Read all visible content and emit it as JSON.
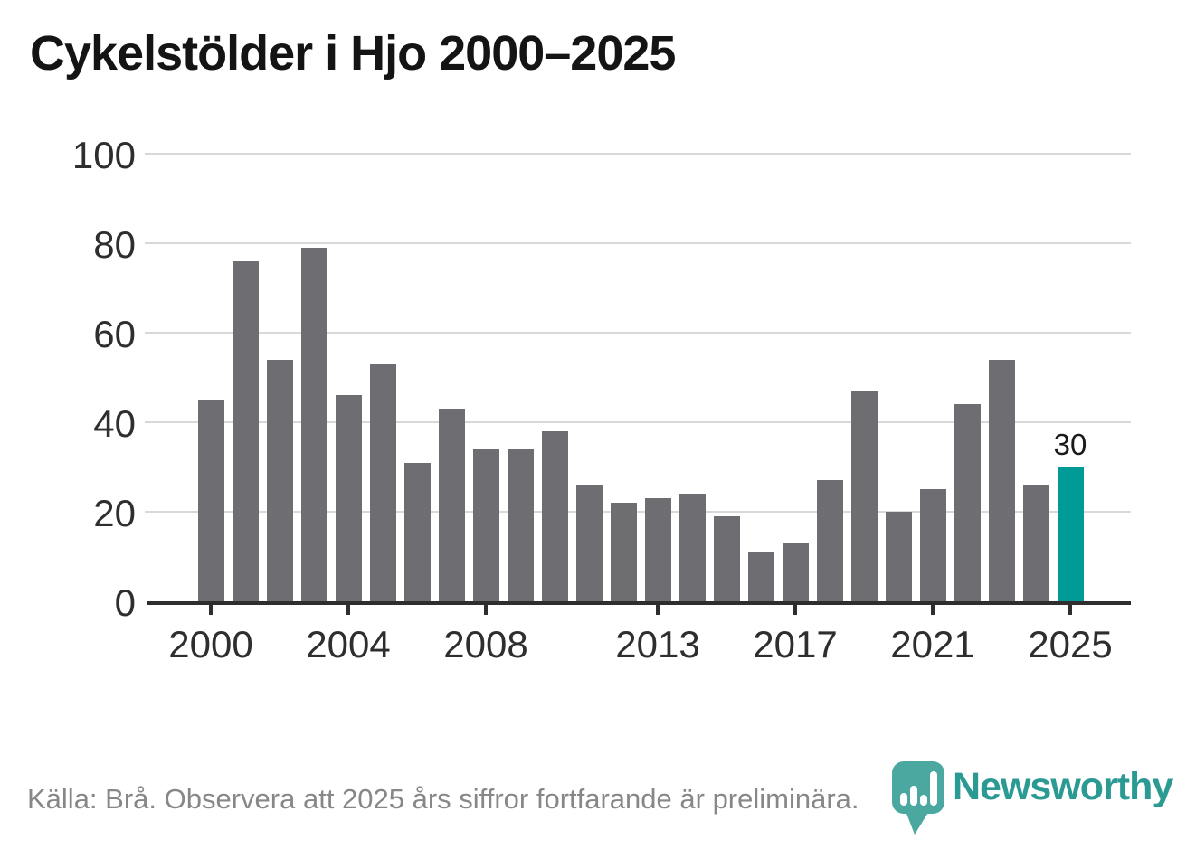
{
  "title": "Cykelstölder i Hjo 2000–2025",
  "chart_data": {
    "type": "bar",
    "title": "Cykelstölder i Hjo 2000–2025",
    "x": [
      2000,
      2001,
      2002,
      2003,
      2004,
      2005,
      2006,
      2007,
      2008,
      2009,
      2010,
      2011,
      2012,
      2013,
      2014,
      2015,
      2016,
      2017,
      2018,
      2019,
      2020,
      2021,
      2022,
      2023,
      2024,
      2025
    ],
    "values": [
      45,
      76,
      54,
      79,
      46,
      53,
      31,
      43,
      34,
      34,
      38,
      26,
      22,
      23,
      24,
      19,
      11,
      13,
      27,
      47,
      20,
      25,
      44,
      54,
      26,
      30
    ],
    "xlabel": "",
    "ylabel": "",
    "ylim": [
      0,
      100
    ],
    "yticks": [
      0,
      20,
      40,
      60,
      80,
      100
    ],
    "xtick_years": [
      2000,
      2004,
      2008,
      2013,
      2017,
      2021,
      2025
    ],
    "xtick_labels": [
      "2000",
      "2004",
      "2008",
      "2013",
      "2017",
      "2021",
      "2025"
    ],
    "grid": true,
    "legend_position": "none",
    "bar_color": "#6d6d72",
    "highlight_color": "#009b96",
    "highlight_year": 2025,
    "annotation": {
      "year": 2025,
      "text": "30"
    }
  },
  "footer": {
    "source_text": "Källa: Brå. Observera att 2025 års siffror fortfarande är preliminära."
  },
  "logo": {
    "wordmark": "Newsworthy",
    "icon": "bar-chart-pin-icon",
    "icon_color": "#4aa8a1",
    "wordmark_color": "#2b9a93"
  },
  "colors": {
    "background": "#ffffff",
    "title": "#141414",
    "axis": "#2e2e2e",
    "gridline": "#d9d9d9",
    "footer_text": "#878787",
    "bar": "#6d6d72",
    "highlight": "#009b96"
  }
}
